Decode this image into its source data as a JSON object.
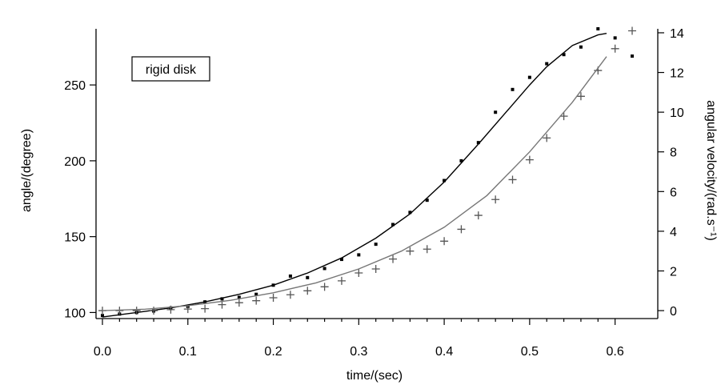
{
  "chart_data": {
    "type": "scatter",
    "annotation": "rigid disk",
    "xlabel": "time/(sec)",
    "ylabel": "angle/(degree)",
    "y2label": "angular velocity/(rad.s⁻¹)",
    "xlim": [
      0.0,
      0.62
    ],
    "ylim": [
      96,
      287
    ],
    "y2lim": [
      -0.4,
      14.2
    ],
    "xticks": [
      0.0,
      0.1,
      0.2,
      0.3,
      0.4,
      0.5,
      0.6
    ],
    "xtick_labels": [
      "0.0",
      "0.1",
      "0.2",
      "0.3",
      "0.4",
      "0.5",
      "0.6"
    ],
    "yticks": [
      100,
      150,
      200,
      250
    ],
    "ytick_labels": [
      "100",
      "150",
      "200",
      "250"
    ],
    "y2ticks": [
      0,
      2,
      4,
      6,
      8,
      10,
      12,
      14
    ],
    "y2tick_labels": [
      "0",
      "2",
      "4",
      "6",
      "8",
      "10",
      "12",
      "14"
    ],
    "grid": false,
    "series": [
      {
        "axis": "left",
        "marker": "dot",
        "color": "#000000",
        "x": [
          0.0,
          0.02,
          0.04,
          0.06,
          0.08,
          0.1,
          0.12,
          0.14,
          0.16,
          0.18,
          0.2,
          0.22,
          0.24,
          0.26,
          0.28,
          0.3,
          0.32,
          0.34,
          0.36,
          0.38,
          0.4,
          0.42,
          0.44,
          0.46,
          0.48,
          0.5,
          0.52,
          0.54,
          0.56,
          0.58,
          0.6,
          0.62
        ],
        "y": [
          98,
          99,
          100,
          101,
          103,
          104,
          107,
          109,
          110,
          112,
          118,
          124,
          123,
          129,
          135,
          138,
          145,
          158,
          166,
          174,
          187,
          200,
          212,
          232,
          247,
          255,
          264,
          270,
          275,
          287,
          281,
          269
        ]
      },
      {
        "axis": "left",
        "marker": "line",
        "color": "#000000",
        "x": [
          0.0,
          0.04,
          0.08,
          0.12,
          0.16,
          0.2,
          0.24,
          0.28,
          0.32,
          0.36,
          0.4,
          0.44,
          0.48,
          0.5,
          0.52,
          0.55,
          0.58,
          0.59
        ],
        "y": [
          97,
          100,
          103,
          107,
          112,
          118,
          126,
          136,
          149,
          165,
          186,
          211,
          237,
          250,
          262,
          276,
          283,
          284
        ]
      },
      {
        "axis": "right",
        "marker": "plus",
        "color": "#555555",
        "x": [
          0.0,
          0.02,
          0.04,
          0.06,
          0.08,
          0.1,
          0.12,
          0.14,
          0.16,
          0.18,
          0.2,
          0.22,
          0.24,
          0.26,
          0.28,
          0.3,
          0.32,
          0.34,
          0.36,
          0.38,
          0.4,
          0.42,
          0.44,
          0.46,
          0.48,
          0.5,
          0.52,
          0.54,
          0.56,
          0.58,
          0.6,
          0.62
        ],
        "y": [
          0.0,
          0.0,
          0.0,
          0.0,
          0.05,
          0.08,
          0.1,
          0.3,
          0.4,
          0.5,
          0.65,
          0.8,
          1.0,
          1.2,
          1.5,
          1.9,
          2.1,
          2.6,
          3.0,
          3.1,
          3.5,
          4.1,
          4.8,
          5.6,
          6.6,
          7.6,
          8.7,
          9.8,
          10.8,
          12.1,
          13.2,
          14.1
        ]
      },
      {
        "axis": "right",
        "marker": "line",
        "color": "#777777",
        "x": [
          0.0,
          0.05,
          0.1,
          0.15,
          0.2,
          0.25,
          0.3,
          0.35,
          0.4,
          0.45,
          0.5,
          0.55,
          0.59
        ],
        "y": [
          0.0,
          0.07,
          0.25,
          0.52,
          0.9,
          1.4,
          2.1,
          3.0,
          4.2,
          5.8,
          8.0,
          10.5,
          12.8
        ]
      }
    ]
  }
}
